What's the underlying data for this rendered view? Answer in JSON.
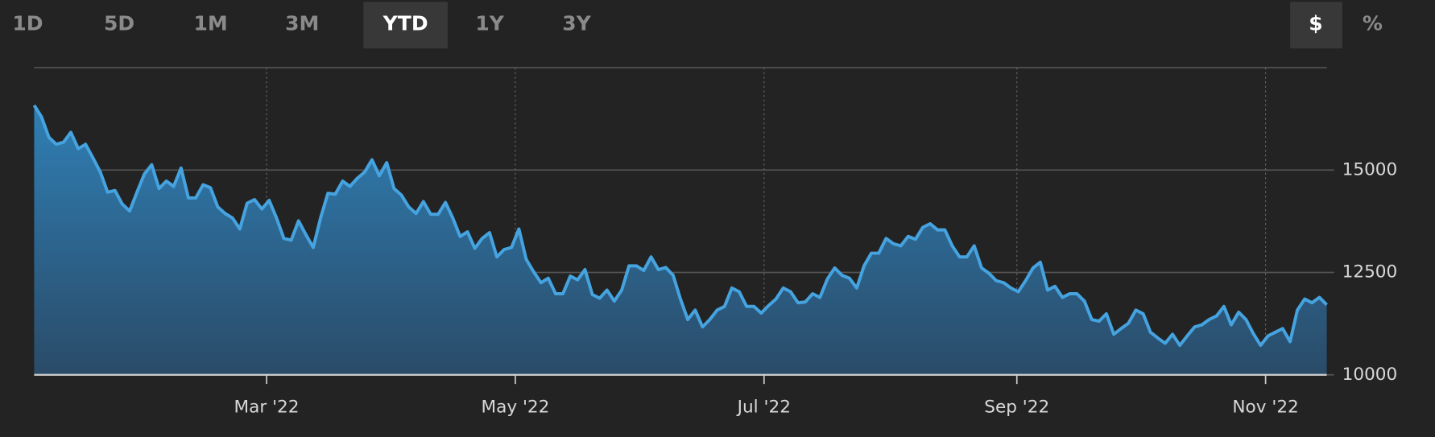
{
  "toolbar": {
    "ranges": [
      "1D",
      "5D",
      "1M",
      "3M",
      "YTD",
      "1Y",
      "3Y"
    ],
    "selected_range": "YTD",
    "units": [
      "$",
      "%"
    ],
    "selected_unit": "$"
  },
  "chart_data": {
    "type": "area",
    "line_color": "#45a3e0",
    "fill_top": "#2f7fb5",
    "fill_bottom": "#2a4b68",
    "grid": true,
    "xlim": [
      "2022-01-03",
      "2022-11-16"
    ],
    "xticks": [
      {
        "value": "2022-03-01",
        "label": "Mar '22"
      },
      {
        "value": "2022-05-01",
        "label": "May '22"
      },
      {
        "value": "2022-07-01",
        "label": "Jul '22"
      },
      {
        "value": "2022-09-01",
        "label": "Sep '22"
      },
      {
        "value": "2022-11-01",
        "label": "Nov '22"
      }
    ],
    "ylim": [
      10000,
      17500
    ],
    "yticks": [
      10000,
      12500,
      15000
    ],
    "values": [
      16580,
      16300,
      15800,
      15630,
      15680,
      15920,
      15520,
      15630,
      15300,
      14950,
      14460,
      14500,
      14170,
      14000,
      14460,
      14900,
      15130,
      14550,
      14730,
      14600,
      15050,
      14320,
      14320,
      14640,
      14570,
      14100,
      13940,
      13830,
      13560,
      14190,
      14280,
      14050,
      14260,
      13830,
      13330,
      13290,
      13760,
      13420,
      13110,
      13830,
      14430,
      14410,
      14730,
      14600,
      14800,
      14950,
      15250,
      14860,
      15180,
      14550,
      14390,
      14100,
      13940,
      14230,
      13920,
      13920,
      14210,
      13830,
      13380,
      13490,
      13090,
      13330,
      13470,
      12880,
      13060,
      13110,
      13560,
      12820,
      12520,
      12250,
      12360,
      11980,
      11980,
      12410,
      12320,
      12570,
      11960,
      11870,
      12070,
      11800,
      12070,
      12660,
      12660,
      12550,
      12880,
      12570,
      12620,
      12430,
      11850,
      11350,
      11580,
      11170,
      11350,
      11580,
      11670,
      12120,
      12030,
      11670,
      11670,
      11510,
      11690,
      11850,
      12120,
      12030,
      11760,
      11780,
      11980,
      11890,
      12340,
      12610,
      12430,
      12360,
      12120,
      12660,
      12970,
      12970,
      13330,
      13200,
      13150,
      13380,
      13310,
      13600,
      13690,
      13540,
      13540,
      13150,
      12880,
      12880,
      13150,
      12610,
      12480,
      12300,
      12250,
      12120,
      12030,
      12300,
      12610,
      12750,
      12070,
      12160,
      11890,
      11980,
      11980,
      11800,
      11350,
      11310,
      11490,
      10990,
      11130,
      11260,
      11580,
      11490,
      11040,
      10900,
      10770,
      10990,
      10720,
      10950,
      11170,
      11220,
      11350,
      11440,
      11670,
      11220,
      11530,
      11350,
      11010,
      10720,
      10950,
      11040,
      11130,
      10810,
      11580,
      11850,
      11760,
      11890,
      11710
    ]
  }
}
